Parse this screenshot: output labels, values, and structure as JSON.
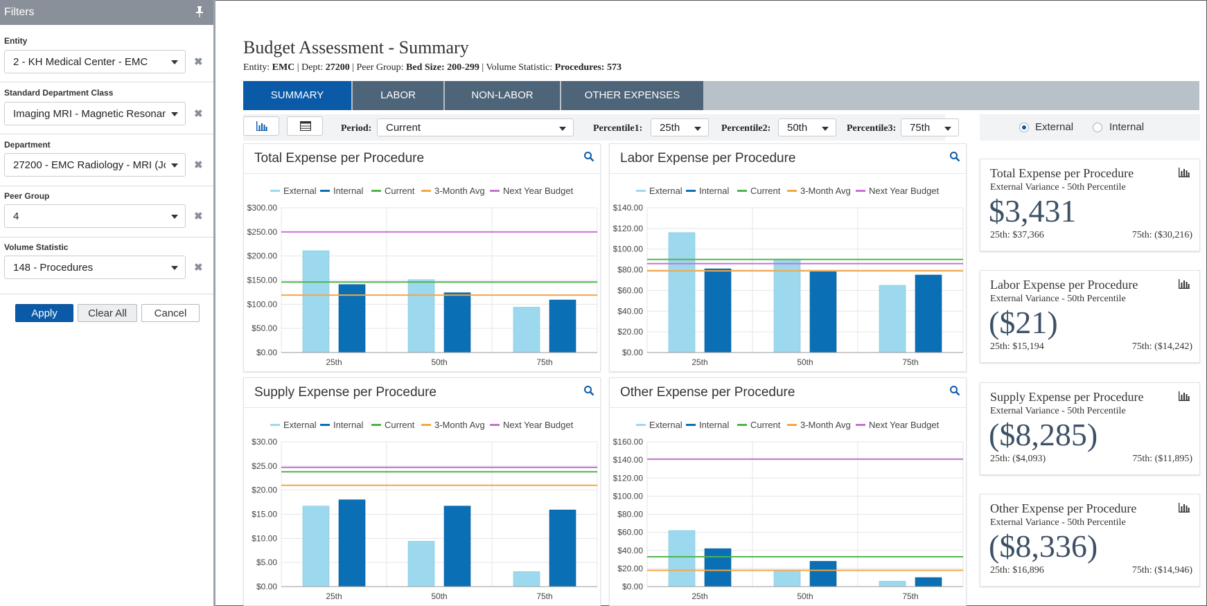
{
  "filters": {
    "title": "Filters",
    "fields": [
      {
        "label": "Entity",
        "value": "2 - KH Medical Center - EMC"
      },
      {
        "label": "Standard Department Class",
        "value": "Imaging MRI - Magnetic Resonan"
      },
      {
        "label": "Department",
        "value": "27200 - EMC Radiology - MRI (Jol"
      },
      {
        "label": "Peer Group",
        "value": "4"
      },
      {
        "label": "Volume Statistic",
        "value": "148 - Procedures"
      }
    ],
    "apply_label": "Apply",
    "clear_label": "Clear All",
    "cancel_label": "Cancel"
  },
  "header": {
    "title": "Budget Assessment - Summary",
    "entity_label": "Entity:",
    "entity_value": "EMC",
    "dept_label": "| Dept:",
    "dept_value": "27200",
    "peer_label": "| Peer Group:",
    "peer_value": "Bed Size: 200-299",
    "volume_label": "| Volume Statistic:",
    "volume_value": "Procedures: 573"
  },
  "tabs": [
    {
      "label": "SUMMARY",
      "active": true
    },
    {
      "label": "LABOR",
      "active": false
    },
    {
      "label": "NON-LABOR",
      "active": false
    },
    {
      "label": "OTHER EXPENSES",
      "active": false
    }
  ],
  "toolbar": {
    "chart_icon": "bar-chart-icon",
    "table_icon": "table-icon",
    "period_label": "Period:",
    "period_value": "Current",
    "p1_label": "Percentile1:",
    "p1_value": "25th",
    "p2_label": "Percentile2:",
    "p2_value": "50th",
    "p3_label": "Percentile3:",
    "p3_value": "75th"
  },
  "comparison": {
    "external_label": "External",
    "internal_label": "Internal",
    "selected": "External"
  },
  "colors": {
    "external": "#9dd9ee",
    "internal": "#0a6fb5",
    "current": "#4cb548",
    "avg": "#f5a640",
    "budget": "#c672d3"
  },
  "legend": [
    "External",
    "Internal",
    "Current",
    "3-Month Avg",
    "Next Year Budget"
  ],
  "chart_data": [
    {
      "type": "bar",
      "title": "Total Expense per Procedure",
      "categories": [
        "25th",
        "50th",
        "75th"
      ],
      "series": [
        {
          "name": "External",
          "values": [
            211,
            151,
            94
          ]
        },
        {
          "name": "Internal",
          "values": [
            141,
            124,
            109
          ]
        }
      ],
      "lines": {
        "Current": 146,
        "3-Month Avg": 119,
        "Next Year Budget": 250
      },
      "ylim": [
        0,
        300
      ],
      "yticks": [
        "$0.00",
        "$50.00",
        "$100.00",
        "$150.00",
        "$200.00",
        "$250.00",
        "$300.00"
      ]
    },
    {
      "type": "bar",
      "title": "Labor Expense per Procedure",
      "categories": [
        "25th",
        "50th",
        "75th"
      ],
      "series": [
        {
          "name": "External",
          "values": [
            116,
            90,
            65
          ]
        },
        {
          "name": "Internal",
          "values": [
            81,
            79,
            75
          ]
        }
      ],
      "lines": {
        "Current": 90,
        "3-Month Avg": 79,
        "Next Year Budget": 86
      },
      "ylim": [
        0,
        140
      ],
      "yticks": [
        "$0.00",
        "$20.00",
        "$40.00",
        "$60.00",
        "$80.00",
        "$100.00",
        "$120.00",
        "$140.00"
      ]
    },
    {
      "type": "bar",
      "title": "Supply Expense per Procedure",
      "categories": [
        "25th",
        "50th",
        "75th"
      ],
      "series": [
        {
          "name": "External",
          "values": [
            16.7,
            9.4,
            3.1
          ]
        },
        {
          "name": "Internal",
          "values": [
            18.0,
            16.7,
            15.9
          ]
        }
      ],
      "lines": {
        "Current": 23.8,
        "3-Month Avg": 21.0,
        "Next Year Budget": 24.7
      },
      "ylim": [
        0,
        30
      ],
      "yticks": [
        "$0.00",
        "$5.00",
        "$10.00",
        "$15.00",
        "$20.00",
        "$25.00",
        "$30.00"
      ]
    },
    {
      "type": "bar",
      "title": "Other Expense per Procedure",
      "categories": [
        "25th",
        "50th",
        "75th"
      ],
      "series": [
        {
          "name": "External",
          "values": [
            62,
            18,
            6
          ]
        },
        {
          "name": "Internal",
          "values": [
            42,
            28,
            10
          ]
        }
      ],
      "lines": {
        "Current": 33,
        "3-Month Avg": 18,
        "Next Year Budget": 141
      },
      "ylim": [
        0,
        160
      ],
      "yticks": [
        "$0.00",
        "$20.00",
        "$40.00",
        "$60.00",
        "$80.00",
        "$100.00",
        "$120.00",
        "$140.00",
        "$160.00"
      ]
    }
  ],
  "kpis": [
    {
      "title": "Total Expense per Procedure",
      "subtitle": "External Variance - 50th Percentile",
      "value": "$3,431",
      "left": "25th: $37,366",
      "right": "75th: ($30,216)"
    },
    {
      "title": "Labor Expense per Procedure",
      "subtitle": "External Variance - 50th Percentile",
      "value": "($21)",
      "left": "25th: $15,194",
      "right": "75th: ($14,242)"
    },
    {
      "title": "Supply Expense per Procedure",
      "subtitle": "External Variance - 50th Percentile",
      "value": "($8,285)",
      "left": "25th: ($4,093)",
      "right": "75th: ($11,895)"
    },
    {
      "title": "Other Expense per Procedure",
      "subtitle": "External Variance - 50th Percentile",
      "value": "($8,336)",
      "left": "25th: $16,896",
      "right": "75th: ($14,946)"
    }
  ]
}
